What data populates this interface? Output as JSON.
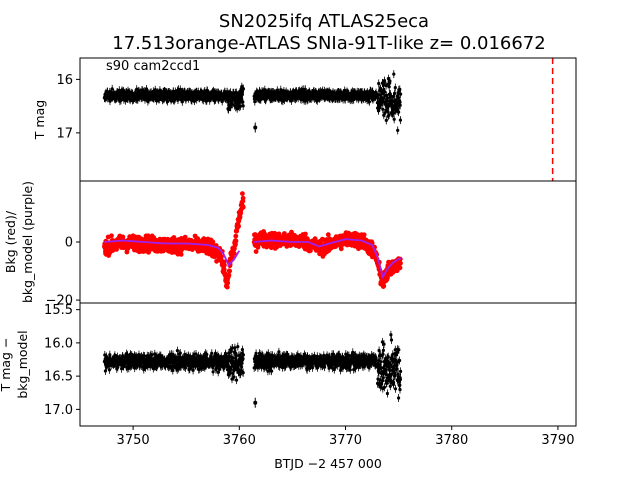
{
  "figure": {
    "title_line1": "SN2025ifq  ATLAS25eca",
    "title_line2": "17.513orange-ATLAS SNIa-91T-like z= 0.016672",
    "annotation": "s90 cam2ccd1",
    "xlabel": "BTJD −2 457 000",
    "marker_line_x": 3789.5,
    "colors": {
      "points": "#000000",
      "bkg": "#ff0000",
      "bkg_model": "#a020f0",
      "marker_line": "#ff0000"
    }
  },
  "chart_data": [
    {
      "type": "scatter",
      "panel": "top",
      "ylabel": "T mag",
      "ylim": [
        17.9,
        15.6
      ],
      "yticks": [
        16,
        17
      ],
      "xlim": [
        3745.0,
        3791.7
      ],
      "segments": [
        {
          "x": [
            3747.3,
            3758.9
          ],
          "center": 16.3,
          "spread": 0.17
        },
        {
          "x": [
            3758.9,
            3760.4
          ],
          "center": 16.35,
          "spread": 0.4
        },
        {
          "x": [
            3761.4,
            3772.9
          ],
          "center": 16.3,
          "spread": 0.17
        },
        {
          "x": [
            3773.0,
            3775.2
          ],
          "center": 16.4,
          "spread": 0.7
        }
      ],
      "outliers": [
        {
          "x": 3761.5,
          "y": 16.9
        }
      ]
    },
    {
      "type": "scatter",
      "panel": "middle",
      "ylabel_line1": "Bkg (red)/",
      "ylabel_line2": "bkg_model (purple)",
      "ylim": [
        -21,
        21
      ],
      "yticks": [
        -20,
        0
      ],
      "series": [
        {
          "name": "Bkg",
          "x": [
            3747.3,
            3749.0,
            3751.0,
            3753.0,
            3755.0,
            3757.0,
            3758.2,
            3758.6,
            3758.9,
            3759.2,
            3759.5,
            3759.8,
            3760.2,
            3760.4,
            3761.4,
            3762.0,
            3764.0,
            3766.0,
            3767.5,
            3768.5,
            3770.0,
            3771.5,
            3772.4,
            3772.9,
            3773.3,
            3773.6,
            3774.0,
            3774.5,
            3775.2
          ],
          "y": [
            -1.5,
            -0.5,
            -0.5,
            -1.0,
            -1.0,
            -1.5,
            -4.0,
            -10.0,
            -15.0,
            -5.0,
            -3.0,
            5.0,
            12.0,
            14.0,
            0.0,
            1.0,
            0.5,
            0.5,
            -2.0,
            -1.0,
            1.0,
            0.5,
            -2.0,
            -5.0,
            -12.0,
            -14.0,
            -10.0,
            -8.0,
            -7.0
          ],
          "spread": 4.5
        },
        {
          "name": "bkg_model",
          "x": [
            3747.3,
            3749.0,
            3751.0,
            3753.0,
            3755.0,
            3757.0,
            3758.0,
            3758.5,
            3759.0,
            3759.5,
            3760.0,
            3761.4,
            3763.0,
            3765.0,
            3766.5,
            3767.5,
            3768.5,
            3770.0,
            3771.5,
            3772.5,
            3773.0,
            3773.5,
            3774.0,
            3774.5,
            3775.2
          ],
          "y": [
            0.0,
            0.5,
            0.0,
            -0.5,
            -0.5,
            -1.0,
            -2.0,
            -4.0,
            -8.0,
            -6.0,
            -3.0,
            0.0,
            0.5,
            0.0,
            0.0,
            -1.5,
            -0.5,
            1.0,
            0.5,
            -1.0,
            -5.0,
            -12.0,
            -9.0,
            -7.0,
            -5.5
          ]
        }
      ]
    },
    {
      "type": "scatter",
      "panel": "bottom",
      "ylabel_line1": "T mag −",
      "ylabel_line2": "bkg_model",
      "ylim": [
        17.25,
        15.4
      ],
      "yticks": [
        15.5,
        16.0,
        16.5,
        17.0
      ],
      "xticks": [
        3750,
        3760,
        3770,
        3780,
        3790
      ],
      "segments": [
        {
          "x": [
            3747.3,
            3758.9
          ],
          "center": 16.28,
          "spread": 0.2
        },
        {
          "x": [
            3758.9,
            3760.4
          ],
          "center": 16.3,
          "spread": 0.45
        },
        {
          "x": [
            3761.4,
            3772.9
          ],
          "center": 16.28,
          "spread": 0.2
        },
        {
          "x": [
            3773.0,
            3775.2
          ],
          "center": 16.4,
          "spread": 0.7
        }
      ],
      "outliers": [
        {
          "x": 3761.5,
          "y": 16.9
        }
      ]
    }
  ]
}
